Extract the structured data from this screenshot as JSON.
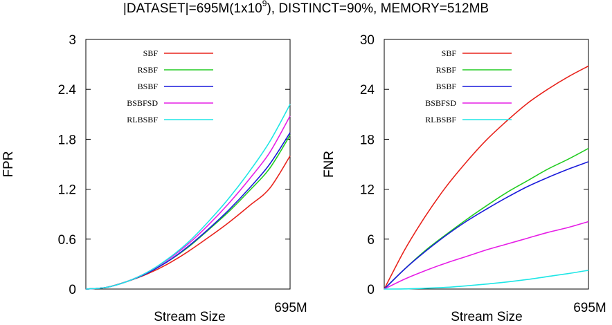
{
  "title": {
    "prefix": "|DATASET|=695M(1x10",
    "exponent": "9",
    "suffix": "), DISTINCT=90%, MEMORY=512MB"
  },
  "chart_data": [
    {
      "type": "line",
      "id": "fpr",
      "xlabel": "Stream Size",
      "ylabel": "FPR",
      "x_tick_label": "695M",
      "x": [
        0,
        0.1,
        0.2,
        0.3,
        0.4,
        0.5,
        0.6,
        0.7,
        0.8,
        0.9,
        1.0
      ],
      "ylim": [
        0,
        3
      ],
      "yticks": [
        0,
        0.6,
        1.2,
        1.8,
        2.4,
        3
      ],
      "ytick_labels": [
        "0",
        "0.6",
        "1.2",
        "1.8",
        "2.4",
        "3"
      ],
      "grid": false,
      "legend": "top-left",
      "series": [
        {
          "name": "SBF",
          "color": "#e8231c",
          "values": [
            0,
            0.02,
            0.09,
            0.18,
            0.3,
            0.45,
            0.62,
            0.8,
            1.0,
            1.21,
            1.6
          ]
        },
        {
          "name": "RSBF",
          "color": "#22cc22",
          "values": [
            0,
            0.02,
            0.09,
            0.19,
            0.33,
            0.5,
            0.71,
            0.93,
            1.18,
            1.45,
            1.85
          ]
        },
        {
          "name": "BSBF",
          "color": "#1a1adb",
          "values": [
            0,
            0.02,
            0.09,
            0.19,
            0.33,
            0.51,
            0.72,
            0.95,
            1.21,
            1.5,
            1.88
          ]
        },
        {
          "name": "BSBFSD",
          "color": "#e61ee6",
          "values": [
            0,
            0.02,
            0.09,
            0.2,
            0.35,
            0.54,
            0.77,
            1.03,
            1.32,
            1.64,
            2.08
          ]
        },
        {
          "name": "RLBSBF",
          "color": "#1ee6e6",
          "values": [
            0,
            0.02,
            0.09,
            0.2,
            0.36,
            0.56,
            0.81,
            1.09,
            1.41,
            1.77,
            2.22
          ]
        }
      ]
    },
    {
      "type": "line",
      "id": "fnr",
      "xlabel": "Stream Size",
      "ylabel": "FNR",
      "x_tick_label": "695M",
      "x": [
        0,
        0.1,
        0.2,
        0.3,
        0.4,
        0.5,
        0.6,
        0.7,
        0.8,
        0.9,
        1.0
      ],
      "ylim": [
        0,
        30
      ],
      "yticks": [
        0,
        6,
        12,
        18,
        24,
        30
      ],
      "ytick_labels": [
        "0",
        "6",
        "12",
        "18",
        "24",
        "30"
      ],
      "grid": false,
      "legend": "top-left",
      "series": [
        {
          "name": "SBF",
          "color": "#e8231c",
          "values": [
            0,
            4.7,
            8.7,
            12.2,
            15.2,
            17.9,
            20.2,
            22.3,
            24.0,
            25.5,
            26.8
          ]
        },
        {
          "name": "RSBF",
          "color": "#22cc22",
          "values": [
            0,
            2.4,
            4.6,
            6.5,
            8.3,
            10.0,
            11.6,
            13.0,
            14.4,
            15.6,
            16.9
          ]
        },
        {
          "name": "BSBF",
          "color": "#1a1adb",
          "values": [
            0,
            2.4,
            4.5,
            6.4,
            8.1,
            9.6,
            11.0,
            12.3,
            13.4,
            14.4,
            15.3
          ]
        },
        {
          "name": "BSBFSD",
          "color": "#e61ee6",
          "values": [
            0,
            1.2,
            2.2,
            3.1,
            3.9,
            4.7,
            5.4,
            6.1,
            6.8,
            7.4,
            8.1
          ]
        },
        {
          "name": "RLBSBF",
          "color": "#1ee6e6",
          "values": [
            0,
            0.02,
            0.1,
            0.2,
            0.38,
            0.6,
            0.85,
            1.15,
            1.5,
            1.85,
            2.25
          ]
        }
      ]
    }
  ]
}
